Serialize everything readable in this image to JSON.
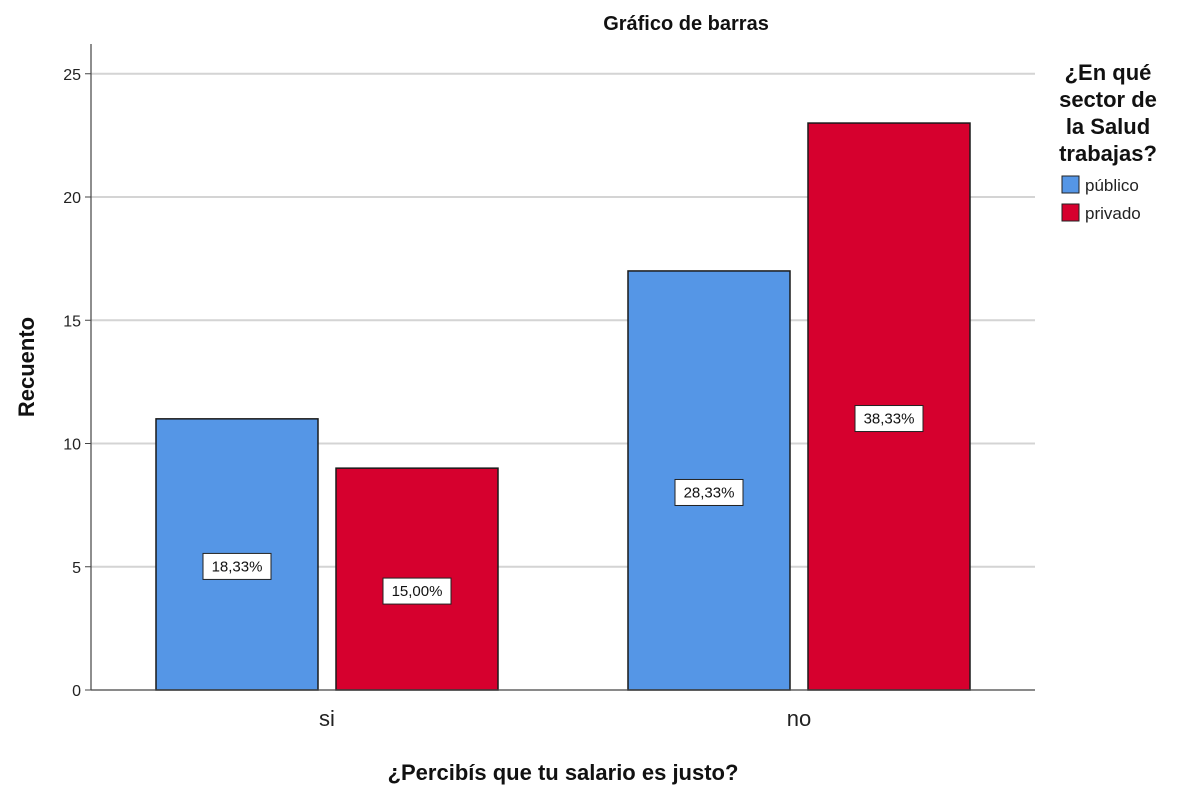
{
  "chart_data": {
    "type": "bar",
    "title": "Gráfico de barras",
    "xlabel": "¿Percibís que tu salario es justo?",
    "ylabel": "Recuento",
    "categories": [
      "si",
      "no"
    ],
    "series": [
      {
        "name": "público",
        "values": [
          11,
          17
        ],
        "labels": [
          "18,33%",
          "28,33%"
        ],
        "color": "#5596e6"
      },
      {
        "name": "privado",
        "values": [
          9,
          23
        ],
        "labels": [
          "15,00%",
          "38,33%"
        ],
        "color": "#d6002e"
      }
    ],
    "ylim": [
      0,
      25
    ],
    "yticks": [
      0,
      5,
      10,
      15,
      20,
      25
    ],
    "grid": true,
    "legend": {
      "title_lines": [
        "¿En qué",
        "sector de",
        "la Salud",
        "trabajas?"
      ],
      "placement": "right"
    }
  }
}
